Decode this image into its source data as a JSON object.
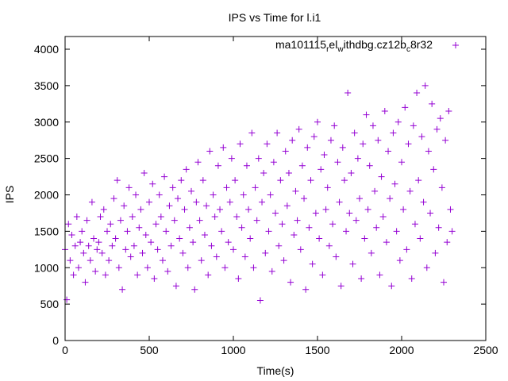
{
  "chart_data": {
    "type": "scatter",
    "title": "IPS vs Time for l.i1",
    "xlabel": "Time(s)",
    "ylabel": "IPS",
    "xlim": [
      0,
      2500
    ],
    "ylim": [
      0,
      4200
    ],
    "xticks": [
      0,
      500,
      1000,
      1500,
      2000,
      2500
    ],
    "yticks": [
      0,
      500,
      1000,
      1500,
      2000,
      2500,
      3000,
      3500,
      4000
    ],
    "grid": false,
    "legend_placement": "top-right",
    "series": [
      {
        "name": "ma101115_rel_withdbg.cz12b_c8r32",
        "legend": {
          "p1": "ma101115",
          "s1": "r",
          "p2": "el",
          "s2": "w",
          "p3": "ithdbg.cz12b",
          "s3": "c",
          "p4": "8r32"
        },
        "color": "#9400d3",
        "marker": "plus",
        "x_start": 0,
        "x_step": 10,
        "y": [
          1250,
          560,
          1600,
          1100,
          1450,
          900,
          1300,
          1700,
          1000,
          1350,
          1500,
          1200,
          800,
          1650,
          1300,
          1100,
          1900,
          1400,
          950,
          1250,
          1350,
          1700,
          1200,
          1800,
          900,
          1500,
          1100,
          1600,
          1300,
          1950,
          1400,
          2200,
          1000,
          1650,
          700,
          1850,
          1250,
          1500,
          2100,
          1150,
          1700,
          1300,
          2000,
          900,
          1550,
          1800,
          1200,
          2300,
          1450,
          1000,
          1900,
          1350,
          2150,
          850,
          1600,
          1250,
          2000,
          1700,
          1100,
          2250,
          1500,
          950,
          1850,
          1300,
          2100,
          1650,
          750,
          1950,
          1400,
          2200,
          1200,
          1800,
          2350,
          1000,
          1550,
          2050,
          1350,
          700,
          1900,
          2450,
          1650,
          1100,
          2200,
          1450,
          1850,
          900,
          2600,
          1300,
          2000,
          1700,
          1150,
          2400,
          1800,
          1500,
          2650,
          1000,
          2100,
          1350,
          1900,
          2500,
          1250,
          2200,
          1700,
          850,
          2700,
          1550,
          2000,
          1150,
          2400,
          1800,
          1400,
          2850,
          1000,
          2100,
          1650,
          2500,
          550,
          1900,
          2300,
          1200,
          2700,
          1500,
          2000,
          950,
          2450,
          1750,
          2850,
          1300,
          2200,
          1600,
          1100,
          2600,
          1850,
          2300,
          800,
          2750,
          1450,
          2050,
          1650,
          2900,
          1250,
          2400,
          1950,
          700,
          2650,
          1550,
          2200,
          1050,
          2800,
          1750,
          3000,
          1400,
          2350,
          900,
          2550,
          1800,
          2100,
          1300,
          2750,
          1600,
          2950,
          1150,
          2450,
          1900,
          750,
          2650,
          2200,
          1500,
          3400,
          1750,
          2300,
          1050,
          2850,
          1650,
          2500,
          1950,
          850,
          2700,
          1400,
          3100,
          1800,
          2400,
          1200,
          2950,
          2050,
          1550,
          2750,
          900,
          2250,
          1700,
          3150,
          1350,
          2600,
          1950,
          750,
          2850,
          2150,
          1500,
          3000,
          1100,
          2450,
          1800,
          3200,
          1250,
          2700,
          2050,
          850,
          2950,
          1600,
          3400,
          2200,
          1400,
          2800,
          1900,
          3500,
          1000,
          2600,
          1750,
          3250,
          2350,
          1200,
          2900,
          1550,
          3050,
          2100,
          800,
          2750,
          1350,
          3150,
          1800,
          1500
        ]
      }
    ]
  }
}
